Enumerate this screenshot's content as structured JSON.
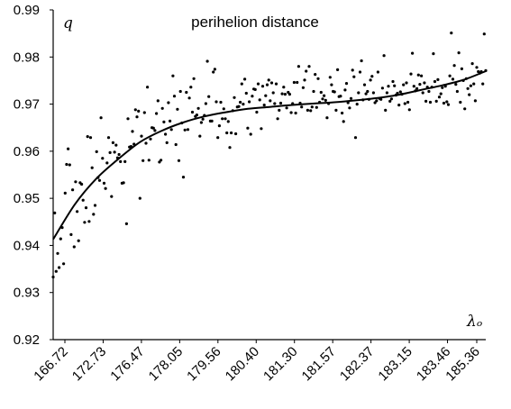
{
  "chart_data": {
    "type": "scatter",
    "title": "perihelion distance",
    "ylabel": "q",
    "xlabel": "λₒ",
    "ylim": [
      0.92,
      0.99
    ],
    "yticks": [
      "0.99",
      "0.98",
      "0.97",
      "0.96",
      "0.95",
      "0.94",
      "0.93",
      "0.92"
    ],
    "xticks": [
      "166.72",
      "172.73",
      "176.47",
      "178.05",
      "179.56",
      "180.40",
      "181.30",
      "181.57",
      "182.37",
      "183.15",
      "183.46",
      "185.36"
    ],
    "x_axis": "ordinal (rank of observation, tick labels show solar longitude)",
    "n_points": 290,
    "series": [
      {
        "type": "points",
        "values": [
          0.9333,
          0.9469,
          0.9345,
          0.9383,
          0.9353,
          0.9414,
          0.9438,
          0.9361,
          0.9511,
          0.9572,
          0.9605,
          0.9571,
          0.9423,
          0.9518,
          0.9397,
          0.9535,
          0.9472,
          0.941,
          0.9533,
          0.953,
          0.9496,
          0.9449,
          0.948,
          0.9631,
          0.9451,
          0.9629,
          0.9565,
          0.9466,
          0.9485,
          0.9599,
          0.9544,
          0.9538,
          0.9671,
          0.9585,
          0.9532,
          0.9521,
          0.9575,
          0.9629,
          0.9597,
          0.9504,
          0.9618,
          0.9598,
          0.9613,
          0.9586,
          0.9593,
          0.9578,
          0.9532,
          0.9533,
          0.9578,
          0.9446,
          0.9669,
          0.9609,
          0.961,
          0.9642,
          0.9615,
          0.9688,
          0.9673,
          0.9685,
          0.95,
          0.9632,
          0.958,
          0.9682,
          0.9617,
          0.9736,
          0.9581,
          0.9626,
          0.965,
          0.9649,
          0.9644,
          0.968,
          0.9707,
          0.9577,
          0.9581,
          0.9691,
          0.9662,
          0.9636,
          0.9618,
          0.9703,
          0.9664,
          0.9646,
          0.976,
          0.9717,
          0.9614,
          0.9689,
          0.958,
          0.9727,
          0.966,
          0.9545,
          0.9645,
          0.9725,
          0.9646,
          0.9713,
          0.9736,
          0.9683,
          0.9754,
          0.9674,
          0.9677,
          0.9691,
          0.9632,
          0.9661,
          0.9668,
          0.9676,
          0.9701,
          0.9791,
          0.9716,
          0.9664,
          0.9664,
          0.9768,
          0.9774,
          0.9705,
          0.9629,
          0.9654,
          0.9704,
          0.9669,
          0.969,
          0.9669,
          0.9639,
          0.9663,
          0.9608,
          0.9639,
          0.9686,
          0.9714,
          0.9637,
          0.9694,
          0.9695,
          0.9704,
          0.9743,
          0.97,
          0.9753,
          0.9723,
          0.9649,
          0.9705,
          0.9636,
          0.9717,
          0.9732,
          0.9731,
          0.9683,
          0.9743,
          0.9709,
          0.9648,
          0.9738,
          0.9698,
          0.9718,
          0.9741,
          0.9751,
          0.9707,
          0.9745,
          0.9724,
          0.9701,
          0.9743,
          0.9669,
          0.9687,
          0.9702,
          0.9722,
          0.9736,
          0.9721,
          0.9692,
          0.9725,
          0.9721,
          0.9682,
          0.9701,
          0.9746,
          0.9681,
          0.9746,
          0.978,
          0.9702,
          0.9694,
          0.9735,
          0.9751,
          0.977,
          0.9687,
          0.978,
          0.9686,
          0.9694,
          0.9727,
          0.9763,
          0.9693,
          0.9754,
          0.9704,
          0.9725,
          0.9711,
          0.9718,
          0.9708,
          0.9671,
          0.9701,
          0.9757,
          0.9741,
          0.9727,
          0.9726,
          0.9687,
          0.9773,
          0.9716,
          0.9717,
          0.9681,
          0.9663,
          0.973,
          0.9744,
          0.9703,
          0.9692,
          0.9712,
          0.9772,
          0.9758,
          0.9629,
          0.97,
          0.9724,
          0.9768,
          0.9792,
          0.9709,
          0.9741,
          0.9722,
          0.9727,
          0.971,
          0.9751,
          0.9759,
          0.9724,
          0.9703,
          0.9707,
          0.9768,
          0.9712,
          0.971,
          0.9734,
          0.9803,
          0.9687,
          0.9724,
          0.9738,
          0.9706,
          0.9711,
          0.9748,
          0.9739,
          0.9719,
          0.9723,
          0.9698,
          0.9726,
          0.9721,
          0.9741,
          0.9701,
          0.9745,
          0.9704,
          0.9688,
          0.9764,
          0.9808,
          0.9738,
          0.9728,
          0.9733,
          0.9762,
          0.9742,
          0.976,
          0.9724,
          0.9745,
          0.9706,
          0.9736,
          0.9727,
          0.9704,
          0.9736,
          0.9807,
          0.9748,
          0.9706,
          0.9752,
          0.9715,
          0.9722,
          0.9735,
          0.9702,
          0.9738,
          0.9705,
          0.9699,
          0.976,
          0.9851,
          0.9753,
          0.9782,
          0.9742,
          0.9727,
          0.9809,
          0.9704,
          0.9775,
          0.975,
          0.969,
          0.9754,
          0.9733,
          0.972,
          0.9739,
          0.9786,
          0.9743,
          0.9707,
          0.9778,
          0.9769,
          0.9766,
          0.9769,
          0.9743,
          0.9849,
          0.9771
        ]
      },
      {
        "type": "trend-line",
        "x_frac": [
          0,
          0.05,
          0.1,
          0.15,
          0.2,
          0.25,
          0.3,
          0.35,
          0.4,
          0.45,
          0.5,
          0.55,
          0.6,
          0.65,
          0.7,
          0.75,
          0.8,
          0.85,
          0.9,
          0.95,
          1.0
        ],
        "values": [
          0.9413,
          0.9487,
          0.9542,
          0.9583,
          0.9619,
          0.9643,
          0.9661,
          0.9674,
          0.9683,
          0.969,
          0.9694,
          0.9698,
          0.9701,
          0.9704,
          0.9708,
          0.9713,
          0.972,
          0.973,
          0.974,
          0.9752,
          0.977
        ]
      }
    ]
  }
}
